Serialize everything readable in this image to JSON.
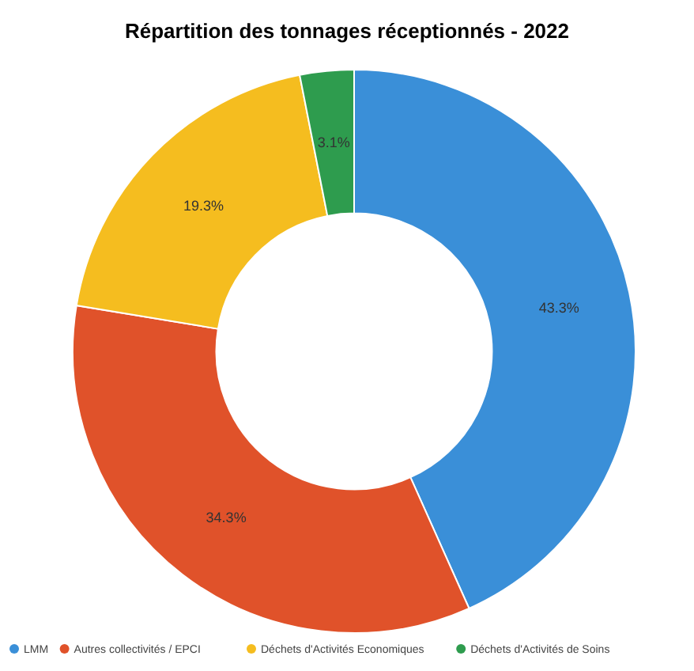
{
  "chart_data": {
    "type": "donut",
    "title": "Répartition des tonnages réceptionnés - 2022",
    "categories": [
      "LMM",
      "Autres collectivités / EPCI",
      "Déchets d'Activités Economiques",
      "Déchets d'Activités de Soins"
    ],
    "values": [
      43.3,
      34.3,
      19.3,
      3.1
    ],
    "colors": [
      "#3a8fd8",
      "#e0522a",
      "#f5bd1f",
      "#2e9c4e"
    ],
    "value_labels": [
      "43.3%",
      "34.3%",
      "19.3%",
      "3.1%"
    ],
    "legend": "bottom"
  }
}
